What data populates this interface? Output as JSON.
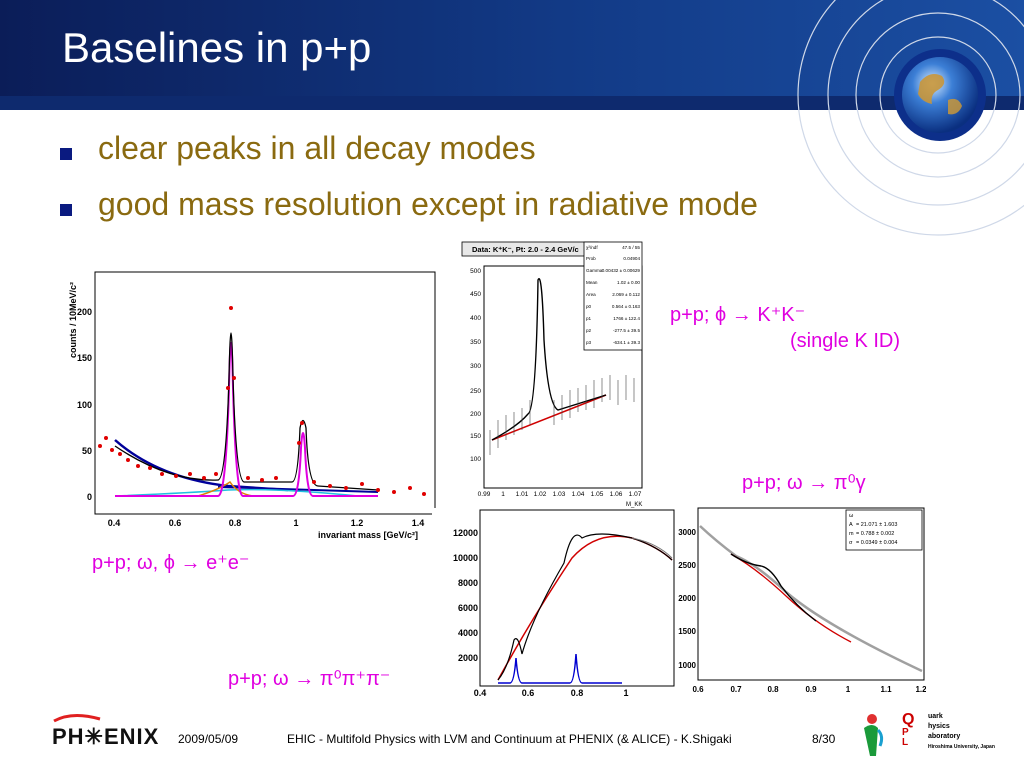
{
  "slide": {
    "title": "Baselines in p+p",
    "bullets": [
      "clear peaks in all decay modes",
      "good mass resolution except in radiative mode"
    ]
  },
  "plots": {
    "ee": {
      "ylabel": "counts / 10MeV/c²",
      "xlabel": "invariant mass [GeV/c²]",
      "yticks": [
        "0",
        "50",
        "100",
        "150",
        "200"
      ],
      "xticks": [
        "0.4",
        "0.6",
        "0.8",
        "1",
        "1.2",
        "1.4"
      ],
      "caption": "p+p;  ω, ϕ → e⁺e⁻"
    },
    "kk": {
      "header": "Data: K⁺K⁻, Pt: 2.0 - 2.4 GeV/c",
      "yticks": [
        "100",
        "150",
        "200",
        "250",
        "300",
        "350",
        "400",
        "450",
        "500"
      ],
      "xticks": [
        "0.99",
        "1",
        "1.01",
        "1.02",
        "1.03",
        "1.04",
        "1.05",
        "1.06",
        "1.07"
      ],
      "xlabel": "M_KK",
      "stats": [
        {
          "k": "χ²/ndf",
          "v": "47.5 / 55"
        },
        {
          "k": "Prob",
          "v": "0.04904"
        },
        {
          "k": "Gamma",
          "v": "0.00432 ± 0.00629"
        },
        {
          "k": "Mean",
          "v": "1.02 ± 0.00"
        },
        {
          "k": "Area",
          "v": "2.069 ± 0.112"
        },
        {
          "k": "p0",
          "v": "0.564 ± 0.163"
        },
        {
          "k": "p1",
          "v": "1766 ± 122.4"
        },
        {
          "k": "p2",
          "v": "-277.5 ± 39.5"
        },
        {
          "k": "p3",
          "v": "-634.1 ± 39.3"
        }
      ],
      "caption1": "p+p;  ϕ → K⁺K⁻",
      "caption2": "(single K ID)"
    },
    "pi3": {
      "yticks": [
        "2000",
        "4000",
        "6000",
        "8000",
        "10000",
        "12000"
      ],
      "xticks": [
        "0.4",
        "0.6",
        "0.8",
        "1"
      ],
      "caption": "p+p;  ω → π⁰π⁺π⁻"
    },
    "gamma": {
      "yticks": [
        "1000",
        "1500",
        "2000",
        "2500",
        "3000"
      ],
      "xticks": [
        "0.6",
        "0.7",
        "0.8",
        "0.9",
        "1",
        "1.1",
        "1.2"
      ],
      "stats": [
        {
          "k": "",
          "v": "ω"
        },
        {
          "k": "A",
          "v": "= 21.071 ± 1.603"
        },
        {
          "k": "m",
          "v": "= 0.788 ± 0.002"
        },
        {
          "k": "σ",
          "v": "= 0.0349 ± 0.004"
        }
      ],
      "caption": "p+p;  ω → π⁰γ"
    }
  },
  "footer": {
    "logo": "PH✳ENIX",
    "date": "2009/05/09",
    "text": "EHIC - Multifold Physics with LVM and Continuum at PHENIX (& ALICE) - K.Shigaki",
    "page": "8/30",
    "qpl_lines": [
      "uark",
      "hysics",
      "aboratory",
      "Hiroshima University, Japan"
    ]
  },
  "colors": {
    "header_bg": "#123a86",
    "bullet_text": "#8a6a10",
    "caption": "#e000e0",
    "bullet_square": "#0a1a80"
  }
}
